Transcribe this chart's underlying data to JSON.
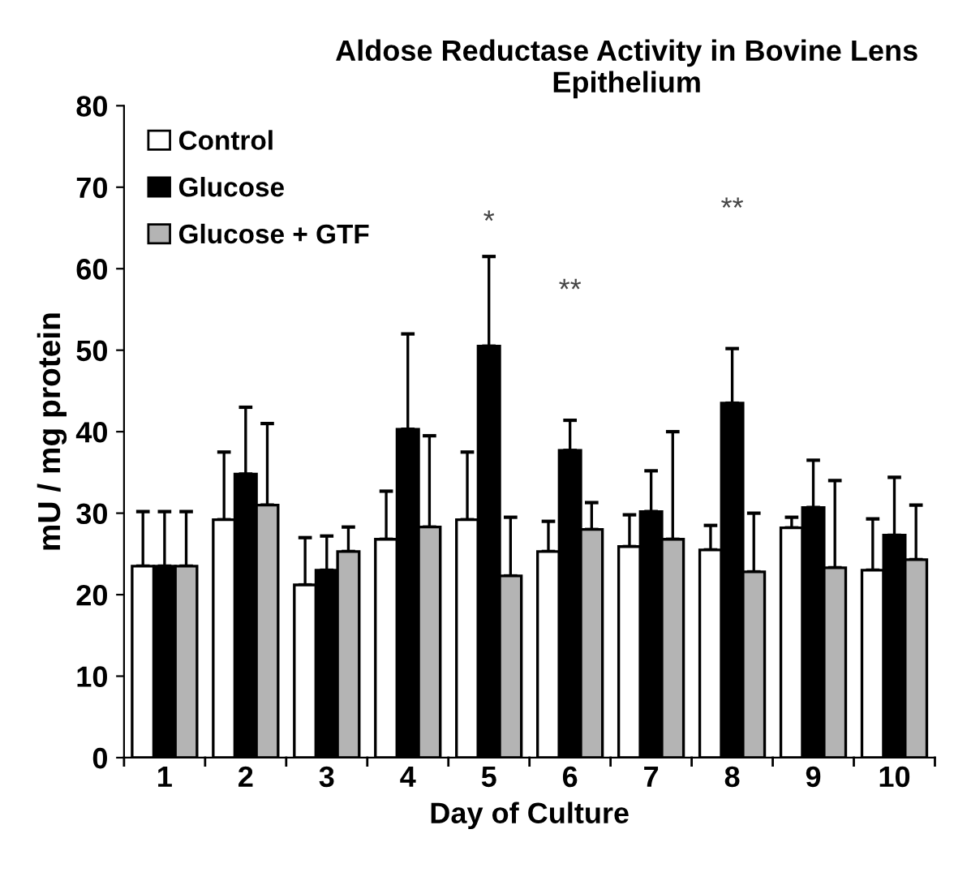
{
  "chart_data": {
    "type": "bar",
    "title": "Aldose Reductase Activity in Bovine Lens\nEpithelium",
    "xlabel": "Day of Culture",
    "ylabel": "mU / mg protein",
    "categories": [
      "1",
      "2",
      "3",
      "4",
      "5",
      "6",
      "7",
      "8",
      "9",
      "10"
    ],
    "series": [
      {
        "name": "Control",
        "color": "#ffffff",
        "values": [
          23.5,
          29.2,
          21.2,
          26.8,
          29.2,
          25.3,
          25.9,
          25.5,
          28.2,
          23.0
        ],
        "errors": [
          [
            23.5,
            30.2
          ],
          [
            29.2,
            37.5
          ],
          [
            21.2,
            27.0
          ],
          [
            26.8,
            32.7
          ],
          [
            29.2,
            37.5
          ],
          [
            25.3,
            29.0
          ],
          [
            25.9,
            29.8
          ],
          [
            25.5,
            28.5
          ],
          [
            28.2,
            29.5
          ],
          [
            23.0,
            29.3
          ]
        ]
      },
      {
        "name": "Glucose",
        "color": "#000000",
        "values": [
          23.5,
          34.8,
          23.0,
          40.3,
          50.5,
          37.7,
          30.2,
          43.5,
          30.7,
          27.3
        ],
        "errors": [
          [
            23.5,
            30.2
          ],
          [
            34.8,
            43.0
          ],
          [
            23.0,
            27.2
          ],
          [
            40.3,
            52.0
          ],
          [
            50.5,
            61.5
          ],
          [
            37.7,
            41.4
          ],
          [
            30.2,
            35.2
          ],
          [
            43.5,
            50.2
          ],
          [
            30.7,
            36.5
          ],
          [
            27.3,
            34.4
          ]
        ]
      },
      {
        "name": "Glucose + GTF",
        "color": "#b4b4b4",
        "values": [
          23.5,
          31.0,
          25.3,
          28.3,
          22.3,
          28.0,
          26.8,
          22.8,
          23.3,
          24.3
        ],
        "errors": [
          [
            23.5,
            30.2
          ],
          [
            31.0,
            41.0
          ],
          [
            25.3,
            28.3
          ],
          [
            28.3,
            39.5
          ],
          [
            22.3,
            29.5
          ],
          [
            28.0,
            31.3
          ],
          [
            26.8,
            40.0
          ],
          [
            22.8,
            30.0
          ],
          [
            23.3,
            34.0
          ],
          [
            24.3,
            31.0
          ]
        ]
      }
    ],
    "annotations": [
      "*",
      "**",
      "**"
    ],
    "ylim": [
      0,
      80
    ],
    "yticks": [
      0,
      10,
      20,
      30,
      40,
      50,
      60,
      70,
      80
    ],
    "legend": "top left",
    "grid": false
  }
}
